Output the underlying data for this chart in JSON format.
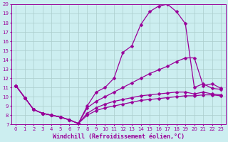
{
  "xlabel": "Windchill (Refroidissement éolien,°C)",
  "ylabel": "",
  "xlim": [
    -0.5,
    23.5
  ],
  "ylim": [
    7,
    20
  ],
  "xticks": [
    0,
    1,
    2,
    3,
    4,
    5,
    6,
    7,
    8,
    9,
    10,
    11,
    12,
    13,
    14,
    15,
    16,
    17,
    18,
    19,
    20,
    21,
    22,
    23
  ],
  "yticks": [
    7,
    8,
    9,
    10,
    11,
    12,
    13,
    14,
    15,
    16,
    17,
    18,
    19,
    20
  ],
  "bg_color": "#cceef0",
  "line_color": "#990099",
  "grid_color": "#aacccc",
  "curves": [
    {
      "x": [
        0,
        1,
        2,
        3,
        4,
        5,
        6,
        7,
        8,
        9,
        10,
        11,
        12,
        13,
        14,
        15,
        16,
        17,
        18,
        19,
        20,
        21,
        22,
        23
      ],
      "y": [
        11.2,
        9.9,
        8.6,
        8.2,
        8.0,
        7.8,
        7.5,
        7.1,
        9.0,
        10.5,
        11.0,
        12.0,
        14.8,
        15.5,
        17.8,
        19.2,
        19.8,
        20.0,
        19.2,
        17.9,
        11.0,
        11.4,
        10.9,
        10.8
      ]
    },
    {
      "x": [
        0,
        1,
        2,
        3,
        4,
        5,
        6,
        7,
        8,
        9,
        10,
        11,
        12,
        13,
        14,
        15,
        16,
        17,
        18,
        19,
        20,
        21,
        22,
        23
      ],
      "y": [
        11.2,
        9.9,
        8.6,
        8.2,
        8.0,
        7.8,
        7.5,
        7.1,
        8.8,
        9.5,
        10.0,
        10.5,
        11.0,
        11.5,
        12.0,
        12.5,
        12.9,
        13.3,
        13.8,
        14.2,
        14.2,
        11.2,
        11.4,
        10.9
      ]
    },
    {
      "x": [
        0,
        1,
        2,
        3,
        4,
        5,
        6,
        7,
        8,
        9,
        10,
        11,
        12,
        13,
        14,
        15,
        16,
        17,
        18,
        19,
        20,
        21,
        22,
        23
      ],
      "y": [
        11.2,
        9.9,
        8.6,
        8.2,
        8.0,
        7.8,
        7.5,
        7.1,
        8.2,
        8.8,
        9.2,
        9.5,
        9.7,
        9.9,
        10.1,
        10.2,
        10.3,
        10.4,
        10.5,
        10.5,
        10.3,
        10.5,
        10.3,
        10.2
      ]
    },
    {
      "x": [
        0,
        1,
        2,
        3,
        4,
        5,
        6,
        7,
        8,
        9,
        10,
        11,
        12,
        13,
        14,
        15,
        16,
        17,
        18,
        19,
        20,
        21,
        22,
        23
      ],
      "y": [
        11.2,
        9.9,
        8.6,
        8.2,
        8.0,
        7.8,
        7.5,
        7.1,
        8.0,
        8.5,
        8.8,
        9.0,
        9.2,
        9.4,
        9.6,
        9.7,
        9.8,
        9.9,
        10.0,
        10.1,
        10.1,
        10.2,
        10.2,
        10.1
      ]
    }
  ],
  "marker": "D",
  "markersize": 2.5,
  "linewidth": 0.9,
  "tick_fontsize": 5.0,
  "xlabel_fontsize": 6.0
}
